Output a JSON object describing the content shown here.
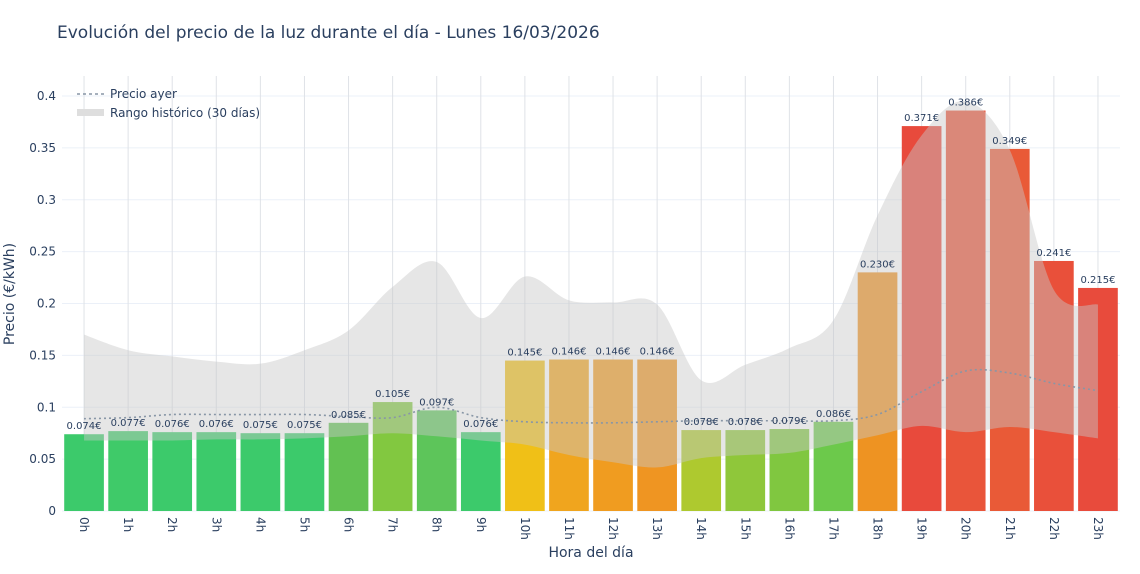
{
  "chart_data": {
    "type": "bar",
    "title": "Evolución del precio de la luz durante el día - Lunes 16/03/2026",
    "xlabel": "Hora del día",
    "ylabel": "Precio (€/kWh)",
    "ylim": [
      0,
      0.42
    ],
    "yticks": [
      0,
      0.05,
      0.1,
      0.15,
      0.2,
      0.25,
      0.3,
      0.35,
      0.4
    ],
    "ytick_labels": [
      "0",
      "0.05",
      "0.1",
      "0.15",
      "0.2",
      "0.25",
      "0.3",
      "0.35",
      "0.4"
    ],
    "grid": true,
    "legend_position": "top-left",
    "categories": [
      "0h",
      "1h",
      "2h",
      "3h",
      "4h",
      "5h",
      "6h",
      "7h",
      "8h",
      "9h",
      "10h",
      "11h",
      "12h",
      "13h",
      "14h",
      "15h",
      "16h",
      "17h",
      "18h",
      "19h",
      "20h",
      "21h",
      "22h",
      "23h"
    ],
    "values": [
      0.074,
      0.077,
      0.076,
      0.076,
      0.075,
      0.075,
      0.085,
      0.105,
      0.097,
      0.076,
      0.145,
      0.146,
      0.146,
      0.146,
      0.078,
      0.078,
      0.079,
      0.086,
      0.23,
      0.371,
      0.386,
      0.349,
      0.241,
      0.215
    ],
    "data_labels": [
      "0.074€",
      "0.077€",
      "0.076€",
      "0.076€",
      "0.075€",
      "0.075€",
      "0.085€",
      "0.105€",
      "0.097€",
      "0.076€",
      "0.145€",
      "0.146€",
      "0.146€",
      "0.146€",
      "0.078€",
      "0.078€",
      "0.079€",
      "0.086€",
      "0.230€",
      "0.371€",
      "0.386€",
      "0.349€",
      "0.241€",
      "0.215€"
    ],
    "bar_colors": [
      "#3cca6b",
      "#3fca69",
      "#3cca6b",
      "#3cca6b",
      "#3cca6b",
      "#3cca6b",
      "#62c152",
      "#82c840",
      "#5dc55a",
      "#3cca6b",
      "#f0c017",
      "#f0a51e",
      "#f09c20",
      "#ef9522",
      "#aec92f",
      "#8fc73a",
      "#80c740",
      "#6cc94b",
      "#ee9322",
      "#e84a3c",
      "#e9553a",
      "#e95a37",
      "#e9503a",
      "#e84b3c"
    ],
    "series": [
      {
        "name": "Precio ayer",
        "type": "line",
        "style": "dotted",
        "color": "#8896a6",
        "values": [
          0.089,
          0.09,
          0.093,
          0.093,
          0.093,
          0.093,
          0.091,
          0.09,
          0.1,
          0.09,
          0.086,
          0.085,
          0.085,
          0.086,
          0.087,
          0.087,
          0.087,
          0.087,
          0.093,
          0.115,
          0.135,
          0.133,
          0.123,
          0.116
        ]
      },
      {
        "name": "Rango histórico (30 días)",
        "type": "area-band",
        "color": "#d3d3d3",
        "upper": [
          0.17,
          0.155,
          0.149,
          0.144,
          0.142,
          0.155,
          0.174,
          0.216,
          0.24,
          0.186,
          0.226,
          0.203,
          0.201,
          0.199,
          0.126,
          0.141,
          0.157,
          0.184,
          0.285,
          0.362,
          0.395,
          0.348,
          0.213,
          0.199
        ],
        "lower": [
          0.068,
          0.068,
          0.068,
          0.069,
          0.069,
          0.07,
          0.072,
          0.075,
          0.072,
          0.068,
          0.064,
          0.054,
          0.047,
          0.042,
          0.051,
          0.054,
          0.056,
          0.064,
          0.073,
          0.082,
          0.076,
          0.081,
          0.076,
          0.07
        ]
      }
    ]
  }
}
